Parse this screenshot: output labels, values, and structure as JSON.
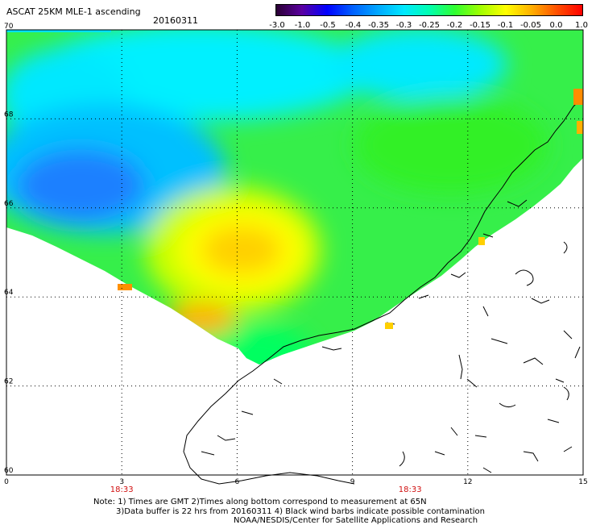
{
  "header": {
    "title": "ASCAT 25KM MLE-1 ascending",
    "date": "20160311"
  },
  "colorbar": {
    "labels": [
      "-3.0",
      "-1.0",
      "-0.5",
      "-0.4",
      "-0.35",
      "-0.3",
      "-0.25",
      "-0.2",
      "-0.15",
      "-0.1",
      "-0.05",
      "0.0",
      "1.0"
    ],
    "colors": [
      "#2a0033",
      "#5a00a0",
      "#0000ff",
      "#0060ff",
      "#00a8ff",
      "#00e8ff",
      "#00ffb0",
      "#30ff30",
      "#a0ff00",
      "#ffff00",
      "#ffb000",
      "#ff5000",
      "#ff0000"
    ]
  },
  "map": {
    "lat_labels": [
      "70",
      "68",
      "66",
      "64",
      "62",
      "60"
    ],
    "lon_labels": [
      "0",
      "3",
      "6",
      "9",
      "12",
      "15"
    ],
    "times": [
      "18:33",
      "18:33"
    ]
  },
  "notes": {
    "line1": "Note: 1) Times are GMT 2)Times along bottom correspond to measurement at 65N",
    "line2": "3)Data buffer is 22 hrs from 20160311 4) Black wind barbs indicate possible contamination",
    "line3": "NOAA/NESDIS/Center for Satellite Applications and Research"
  }
}
